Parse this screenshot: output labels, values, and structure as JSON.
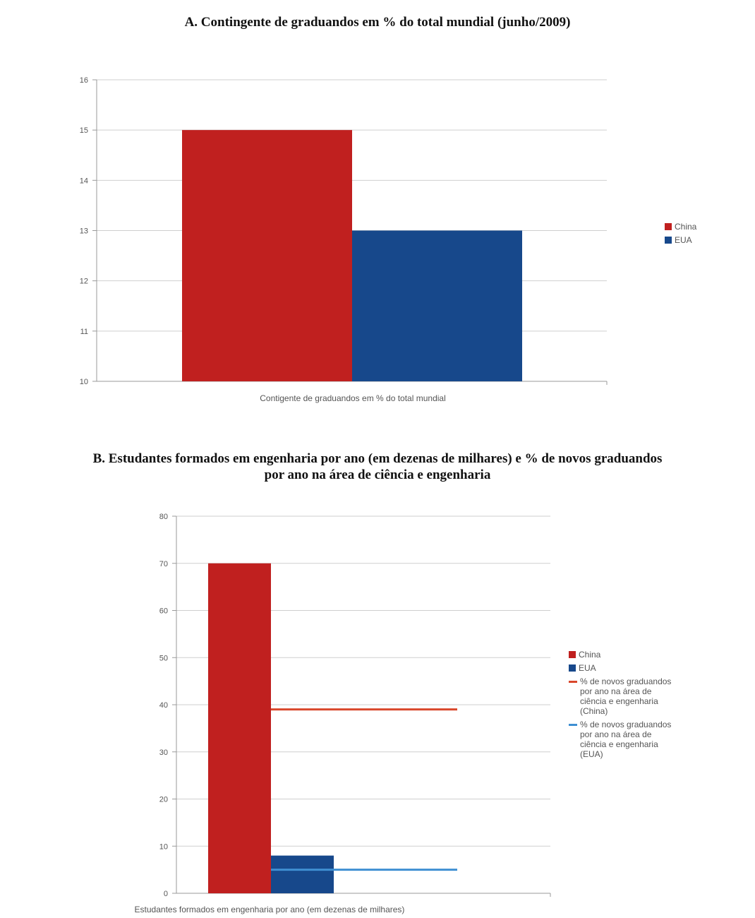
{
  "chart_data": [
    {
      "type": "bar",
      "title": "A. Contingente de graduandos em % do total mundial (junho/2009)",
      "xlabel": "Contigente de graduandos em % do total mundial",
      "ylabel": "",
      "ylim": [
        10,
        16
      ],
      "yticks": [
        10,
        11,
        12,
        13,
        14,
        15,
        16
      ],
      "grid": true,
      "legend_position": "right",
      "series": [
        {
          "name": "China",
          "values": [
            15
          ],
          "color": "#c0201f"
        },
        {
          "name": "EUA",
          "values": [
            13
          ],
          "color": "#17488b"
        }
      ]
    },
    {
      "type": "bar",
      "title_lines": [
        "B. Estudantes formados em engenharia por ano (em dezenas de milhares) e % de novos graduandos",
        "por ano na área de ciência e engenharia"
      ],
      "xlabel": "Estudantes formados em engenharia por ano (em dezenas de milhares)",
      "ylabel": "",
      "ylim": [
        0,
        80
      ],
      "yticks": [
        0,
        10,
        20,
        30,
        40,
        50,
        60,
        70,
        80
      ],
      "grid": true,
      "legend_position": "right",
      "series": [
        {
          "name": "China",
          "kind": "bar",
          "values": [
            70
          ],
          "color": "#c0201f"
        },
        {
          "name": "EUA",
          "kind": "bar",
          "values": [
            8
          ],
          "color": "#17488b"
        },
        {
          "name": "% de novos graduandos\npor ano na área de\nciência e engenharia\n(China)",
          "kind": "line",
          "values": [
            39
          ],
          "color": "#d9472b"
        },
        {
          "name": "% de novos graduandos\npor ano na área de\nciência e engenharia\n(EUA)",
          "kind": "line",
          "values": [
            5
          ],
          "color": "#3f8fd2"
        }
      ]
    }
  ]
}
